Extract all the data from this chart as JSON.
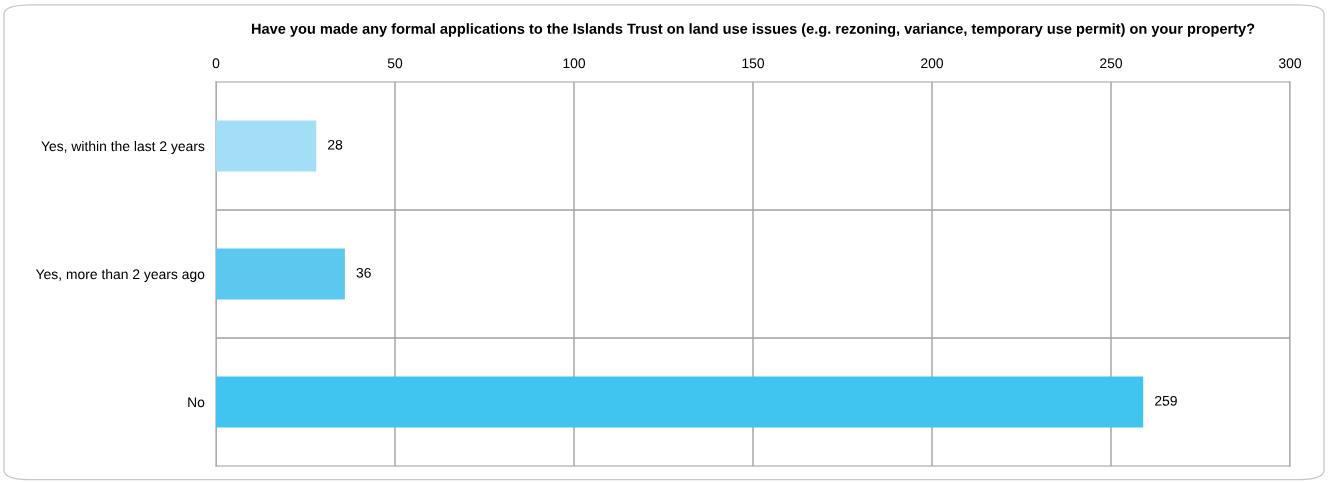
{
  "chart_data": {
    "type": "bar",
    "orientation": "horizontal",
    "title": "Have you made any formal applications to the Islands Trust on land use issues (e.g. rezoning, variance, temporary use permit) on your property?",
    "categories": [
      "Yes, within the last 2 years",
      "Yes, more than 2 years ago",
      "No"
    ],
    "values": [
      28,
      36,
      259
    ],
    "colors": [
      "#a3def7",
      "#5ac8ef",
      "#3fc5f0"
    ],
    "xlim": [
      0,
      300
    ],
    "xticks": [
      0,
      50,
      100,
      150,
      200,
      250,
      300
    ],
    "grid": true,
    "data_labels": true
  }
}
